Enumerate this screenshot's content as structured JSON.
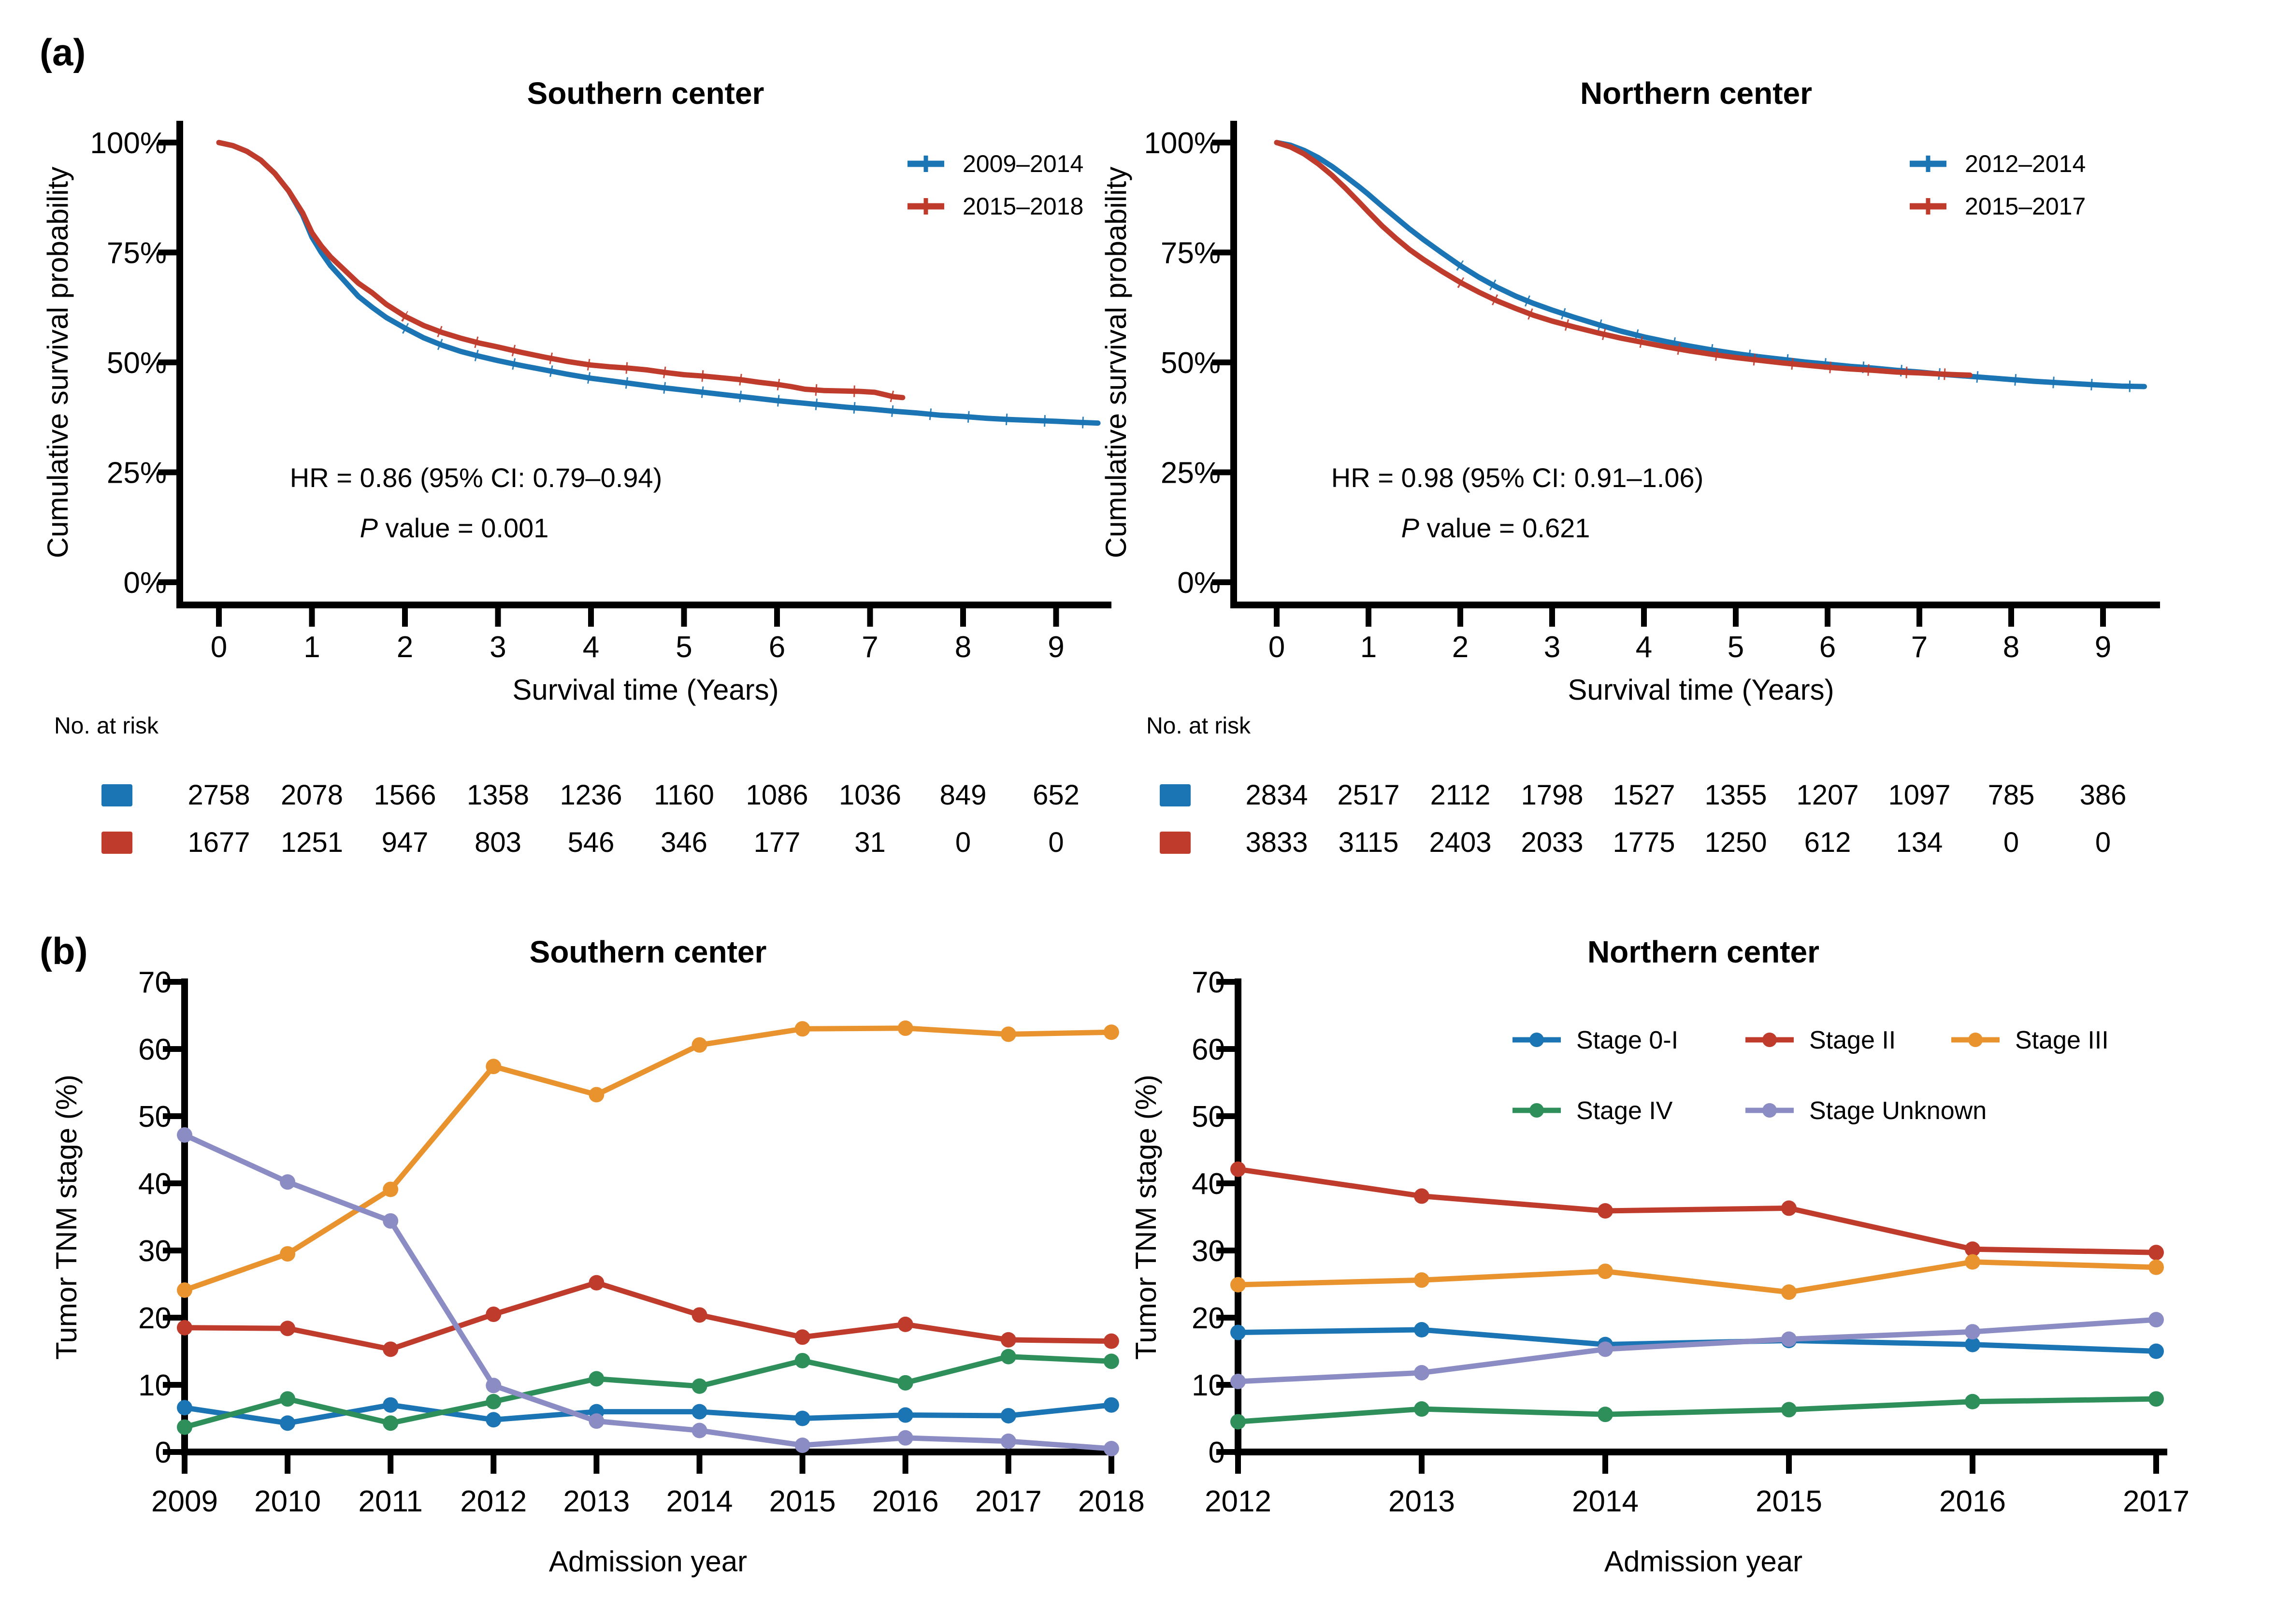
{
  "figure": {
    "background": "#ffffff",
    "panel_labels": [
      "(a)",
      "(b)"
    ]
  },
  "colors": {
    "blue": "#1b74b3",
    "red": "#bf3b2b",
    "orange": "#e9932f",
    "green": "#2e8f5b",
    "purple": "#8b8cc4",
    "axis": "#000000"
  },
  "chart_data": [
    {
      "id": "km-southern",
      "type": "line",
      "panel": "a",
      "title": "Southern center",
      "xlabel": "Survival time (Years)",
      "ylabel": "Cumulative survival probability",
      "xlim": [
        0,
        9.6
      ],
      "ylim": [
        0,
        100
      ],
      "grid": false,
      "legend_position": "top-right",
      "xticks": [
        0,
        1,
        2,
        3,
        4,
        5,
        6,
        7,
        8,
        9
      ],
      "yticks": [
        0,
        25,
        50,
        75,
        100
      ],
      "ytick_labels": [
        "0%",
        "25%",
        "50%",
        "75%",
        "100%"
      ],
      "annotation_hr": "HR = 0.86 (95% CI: 0.79–0.94)",
      "annotation_p_italic": "P",
      "annotation_p_rest": " value = 0.001",
      "series": [
        {
          "name": "2009–2014",
          "color_key": "blue",
          "points": [
            [
              0,
              100
            ],
            [
              0.15,
              99.3
            ],
            [
              0.3,
              98
            ],
            [
              0.45,
              96
            ],
            [
              0.6,
              93
            ],
            [
              0.75,
              89
            ],
            [
              0.9,
              83.5
            ],
            [
              1,
              78.5
            ],
            [
              1.1,
              75
            ],
            [
              1.2,
              72
            ],
            [
              1.35,
              68.5
            ],
            [
              1.5,
              65
            ],
            [
              1.65,
              62.5
            ],
            [
              1.8,
              60.2
            ],
            [
              2,
              57.8
            ],
            [
              2.2,
              55.6
            ],
            [
              2.4,
              53.9
            ],
            [
              2.6,
              52.5
            ],
            [
              2.8,
              51.4
            ],
            [
              3,
              50.4
            ],
            [
              3.25,
              49.3
            ],
            [
              3.5,
              48.3
            ],
            [
              3.75,
              47.3
            ],
            [
              4,
              46.4
            ],
            [
              4.25,
              45.7
            ],
            [
              4.5,
              45
            ],
            [
              4.75,
              44.3
            ],
            [
              5,
              43.7
            ],
            [
              5.25,
              43.1
            ],
            [
              5.5,
              42.5
            ],
            [
              5.75,
              41.9
            ],
            [
              6,
              41.3
            ],
            [
              6.25,
              40.8
            ],
            [
              6.5,
              40.3
            ],
            [
              6.75,
              39.8
            ],
            [
              7,
              39.4
            ],
            [
              7.25,
              38.9
            ],
            [
              7.5,
              38.5
            ],
            [
              7.75,
              38
            ],
            [
              8,
              37.7
            ],
            [
              8.25,
              37.3
            ],
            [
              8.5,
              37
            ],
            [
              8.75,
              36.8
            ],
            [
              9,
              36.6
            ],
            [
              9.2,
              36.4
            ],
            [
              9.45,
              36.2
            ]
          ]
        },
        {
          "name": "2015–2018",
          "color_key": "red",
          "points": [
            [
              0,
              100
            ],
            [
              0.15,
              99.3
            ],
            [
              0.3,
              98
            ],
            [
              0.45,
              96
            ],
            [
              0.6,
              93
            ],
            [
              0.75,
              89
            ],
            [
              0.9,
              84
            ],
            [
              1,
              79.5
            ],
            [
              1.1,
              76.5
            ],
            [
              1.2,
              74
            ],
            [
              1.35,
              71
            ],
            [
              1.5,
              68
            ],
            [
              1.65,
              65.8
            ],
            [
              1.8,
              63.2
            ],
            [
              2,
              60.5
            ],
            [
              2.2,
              58.4
            ],
            [
              2.4,
              56.8
            ],
            [
              2.6,
              55.5
            ],
            [
              2.8,
              54.4
            ],
            [
              3,
              53.5
            ],
            [
              3.25,
              52.3
            ],
            [
              3.5,
              51.2
            ],
            [
              3.75,
              50.2
            ],
            [
              4,
              49.4
            ],
            [
              4.2,
              49
            ],
            [
              4.4,
              48.7
            ],
            [
              4.6,
              48.3
            ],
            [
              4.8,
              47.7
            ],
            [
              5,
              47.2
            ],
            [
              5.2,
              46.9
            ],
            [
              5.4,
              46.5
            ],
            [
              5.6,
              46.1
            ],
            [
              5.8,
              45.5
            ],
            [
              6,
              45
            ],
            [
              6.15,
              44.5
            ],
            [
              6.3,
              43.9
            ],
            [
              6.5,
              43.6
            ],
            [
              6.7,
              43.5
            ],
            [
              6.9,
              43.4
            ],
            [
              7.05,
              43.2
            ],
            [
              7.15,
              42.7
            ],
            [
              7.25,
              42.2
            ],
            [
              7.35,
              42
            ]
          ]
        }
      ],
      "no_at_risk": {
        "label": "No. at risk",
        "time": [
          0,
          1,
          2,
          3,
          4,
          5,
          6,
          7,
          8,
          9
        ],
        "rows": [
          {
            "name": "2009–2014",
            "color_key": "blue",
            "values": [
              2758,
              2078,
              1566,
              1358,
              1236,
              1160,
              1086,
              1036,
              849,
              652
            ]
          },
          {
            "name": "2015–2018",
            "color_key": "red",
            "values": [
              1677,
              1251,
              947,
              803,
              546,
              346,
              177,
              31,
              0,
              0
            ]
          }
        ]
      }
    },
    {
      "id": "km-northern",
      "type": "line",
      "panel": "a",
      "title": "Northern center",
      "xlabel": "Survival time (Years)",
      "ylabel": "Cumulative survival probability",
      "xlim": [
        0,
        9.6
      ],
      "ylim": [
        0,
        100
      ],
      "grid": false,
      "legend_position": "top-right",
      "xticks": [
        0,
        1,
        2,
        3,
        4,
        5,
        6,
        7,
        8,
        9
      ],
      "yticks": [
        0,
        25,
        50,
        75,
        100
      ],
      "ytick_labels": [
        "0%",
        "25%",
        "50%",
        "75%",
        "100%"
      ],
      "annotation_hr": "HR = 0.98 (95% CI: 0.91–1.06)",
      "annotation_p_italic": "P",
      "annotation_p_rest": " value = 0.621",
      "series": [
        {
          "name": "2012–2014",
          "color_key": "blue",
          "points": [
            [
              0,
              100
            ],
            [
              0.15,
              99.4
            ],
            [
              0.3,
              98.2
            ],
            [
              0.45,
              96.6
            ],
            [
              0.6,
              94.6
            ],
            [
              0.75,
              92.3
            ],
            [
              0.9,
              89.9
            ],
            [
              1,
              88.2
            ],
            [
              1.15,
              85.5
            ],
            [
              1.3,
              82.9
            ],
            [
              1.45,
              80.3
            ],
            [
              1.6,
              77.9
            ],
            [
              1.8,
              74.9
            ],
            [
              2,
              72
            ],
            [
              2.2,
              69.4
            ],
            [
              2.4,
              67.1
            ],
            [
              2.6,
              65.1
            ],
            [
              2.8,
              63.4
            ],
            [
              3,
              61.9
            ],
            [
              3.25,
              60.2
            ],
            [
              3.5,
              58.6
            ],
            [
              3.75,
              57.1
            ],
            [
              4,
              55.8
            ],
            [
              4.25,
              54.7
            ],
            [
              4.5,
              53.7
            ],
            [
              4.75,
              52.8
            ],
            [
              5,
              52
            ],
            [
              5.25,
              51.3
            ],
            [
              5.5,
              50.7
            ],
            [
              5.75,
              50.1
            ],
            [
              6,
              49.6
            ],
            [
              6.25,
              49.1
            ],
            [
              6.5,
              48.7
            ],
            [
              6.75,
              48.2
            ],
            [
              7,
              47.8
            ],
            [
              7.25,
              47.3
            ],
            [
              7.5,
              46.9
            ],
            [
              7.75,
              46.5
            ],
            [
              8,
              46.1
            ],
            [
              8.25,
              45.7
            ],
            [
              8.5,
              45.4
            ],
            [
              8.75,
              45.1
            ],
            [
              9,
              44.8
            ],
            [
              9.2,
              44.6
            ],
            [
              9.45,
              44.5
            ]
          ]
        },
        {
          "name": "2015–2017",
          "color_key": "red",
          "points": [
            [
              0,
              100
            ],
            [
              0.15,
              99
            ],
            [
              0.3,
              97.4
            ],
            [
              0.45,
              95.2
            ],
            [
              0.6,
              92.6
            ],
            [
              0.75,
              89.6
            ],
            [
              0.9,
              86.4
            ],
            [
              1,
              84.2
            ],
            [
              1.15,
              81
            ],
            [
              1.3,
              78.2
            ],
            [
              1.45,
              75.6
            ],
            [
              1.6,
              73.4
            ],
            [
              1.8,
              70.7
            ],
            [
              2,
              68.2
            ],
            [
              2.2,
              66
            ],
            [
              2.4,
              64
            ],
            [
              2.6,
              62.3
            ],
            [
              2.8,
              60.7
            ],
            [
              3,
              59.4
            ],
            [
              3.25,
              58
            ],
            [
              3.5,
              56.7
            ],
            [
              3.75,
              55.5
            ],
            [
              4,
              54.5
            ],
            [
              4.25,
              53.5
            ],
            [
              4.5,
              52.6
            ],
            [
              4.75,
              51.8
            ],
            [
              5,
              51.1
            ],
            [
              5.25,
              50.5
            ],
            [
              5.5,
              49.9
            ],
            [
              5.75,
              49.4
            ],
            [
              6,
              48.9
            ],
            [
              6.25,
              48.5
            ],
            [
              6.5,
              48.2
            ],
            [
              6.75,
              47.8
            ],
            [
              7,
              47.6
            ],
            [
              7.2,
              47.4
            ],
            [
              7.4,
              47.2
            ],
            [
              7.55,
              47.1
            ]
          ]
        }
      ],
      "no_at_risk": {
        "label": "No. at risk",
        "time": [
          0,
          1,
          2,
          3,
          4,
          5,
          6,
          7,
          8,
          9
        ],
        "rows": [
          {
            "name": "2012–2014",
            "color_key": "blue",
            "values": [
              2834,
              2517,
              2112,
              1798,
              1527,
              1355,
              1207,
              1097,
              785,
              386
            ]
          },
          {
            "name": "2015–2017",
            "color_key": "red",
            "values": [
              3833,
              3115,
              2403,
              2033,
              1775,
              1250,
              612,
              134,
              0,
              0
            ]
          }
        ]
      }
    },
    {
      "id": "tnm-southern",
      "type": "line",
      "panel": "b",
      "title": "Southern center",
      "xlabel": "Admission year",
      "ylabel": "Tumor TNM stage (%)",
      "ylim": [
        0,
        70
      ],
      "yticks": [
        0,
        10,
        20,
        30,
        40,
        50,
        60,
        70
      ],
      "grid": false,
      "show_legend": false,
      "categories": [
        2009,
        2010,
        2011,
        2012,
        2013,
        2014,
        2015,
        2016,
        2017,
        2018
      ],
      "series": [
        {
          "name": "Stage 0-I",
          "color_key": "blue",
          "values": [
            6.6,
            4.3,
            7.0,
            4.8,
            6.0,
            6.0,
            5.0,
            5.5,
            5.4,
            7.0
          ]
        },
        {
          "name": "Stage II",
          "color_key": "red",
          "values": [
            18.5,
            18.4,
            15.3,
            20.5,
            25.2,
            20.4,
            17.1,
            19.0,
            16.7,
            16.5
          ]
        },
        {
          "name": "Stage III",
          "color_key": "orange",
          "values": [
            24.1,
            29.5,
            39.1,
            57.4,
            53.2,
            60.6,
            63.0,
            63.1,
            62.2,
            62.5
          ]
        },
        {
          "name": "Stage IV",
          "color_key": "green",
          "values": [
            3.7,
            7.9,
            4.3,
            7.5,
            10.9,
            9.8,
            13.6,
            10.3,
            14.2,
            13.5
          ]
        },
        {
          "name": "Stage Unknown",
          "color_key": "purple",
          "values": [
            47.2,
            40.2,
            34.4,
            9.9,
            4.6,
            3.2,
            1.0,
            2.1,
            1.6,
            0.5
          ]
        }
      ]
    },
    {
      "id": "tnm-northern",
      "type": "line",
      "panel": "b",
      "title": "Northern center",
      "xlabel": "Admission year",
      "ylabel": "Tumor TNM stage (%)",
      "ylim": [
        0,
        70
      ],
      "yticks": [
        0,
        10,
        20,
        30,
        40,
        50,
        60,
        70
      ],
      "grid": false,
      "show_legend": true,
      "legend_position": "top-center",
      "categories": [
        2012,
        2013,
        2014,
        2015,
        2016,
        2017
      ],
      "series": [
        {
          "name": "Stage 0-I",
          "color_key": "blue",
          "values": [
            17.8,
            18.2,
            16.0,
            16.6,
            16.0,
            15.0
          ]
        },
        {
          "name": "Stage II",
          "color_key": "red",
          "values": [
            42.1,
            38.1,
            35.9,
            36.3,
            30.2,
            29.7
          ]
        },
        {
          "name": "Stage III",
          "color_key": "orange",
          "values": [
            24.9,
            25.6,
            26.9,
            23.8,
            28.3,
            27.5
          ]
        },
        {
          "name": "Stage IV",
          "color_key": "green",
          "values": [
            4.5,
            6.4,
            5.6,
            6.3,
            7.5,
            7.9
          ]
        },
        {
          "name": "Stage Unknown",
          "color_key": "purple",
          "values": [
            10.5,
            11.8,
            15.3,
            16.8,
            17.9,
            19.7
          ]
        }
      ]
    }
  ]
}
